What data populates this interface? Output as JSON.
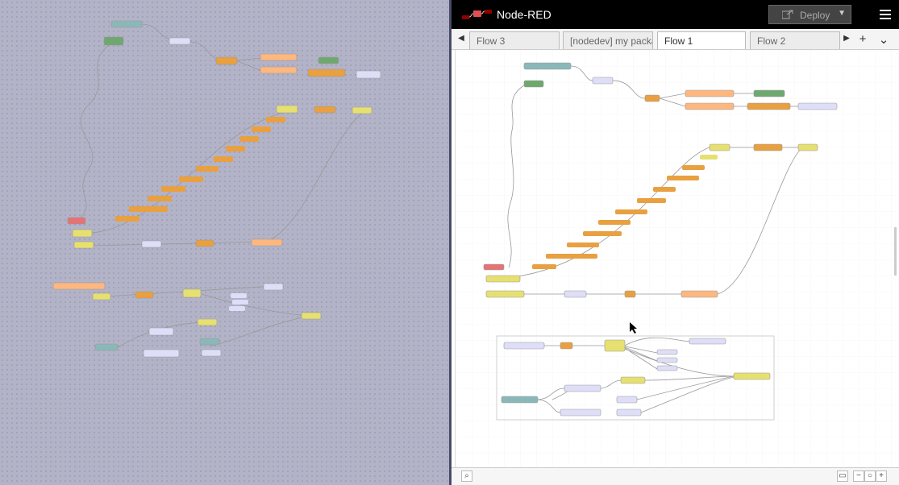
{
  "app": {
    "name": "Node-RED"
  },
  "toolbar": {
    "deploy_label": "Deploy",
    "deploy_icon": "deploy-icon",
    "menu_icon": "hamburger-menu-icon"
  },
  "tabs": [
    {
      "label": "Flow 3",
      "active": false
    },
    {
      "label": "[nodedev] my packa",
      "active": false
    },
    {
      "label": "Flow 1",
      "active": true
    },
    {
      "label": "Flow 2",
      "active": false
    }
  ],
  "footer": {
    "zoom_out": "−",
    "zoom_reset": "○",
    "zoom_in": "+"
  },
  "colors": {
    "header_bg": "#000000",
    "left_pane_bg": "#b3b3c8",
    "node_orange": "#e8a040",
    "node_yellow": "#e6e070",
    "node_green": "#8fbc8f",
    "node_red": "#e57373",
    "node_lavender": "#dedef8",
    "node_peach": "#fdb77f",
    "node_teal": "#8ab8b8"
  }
}
